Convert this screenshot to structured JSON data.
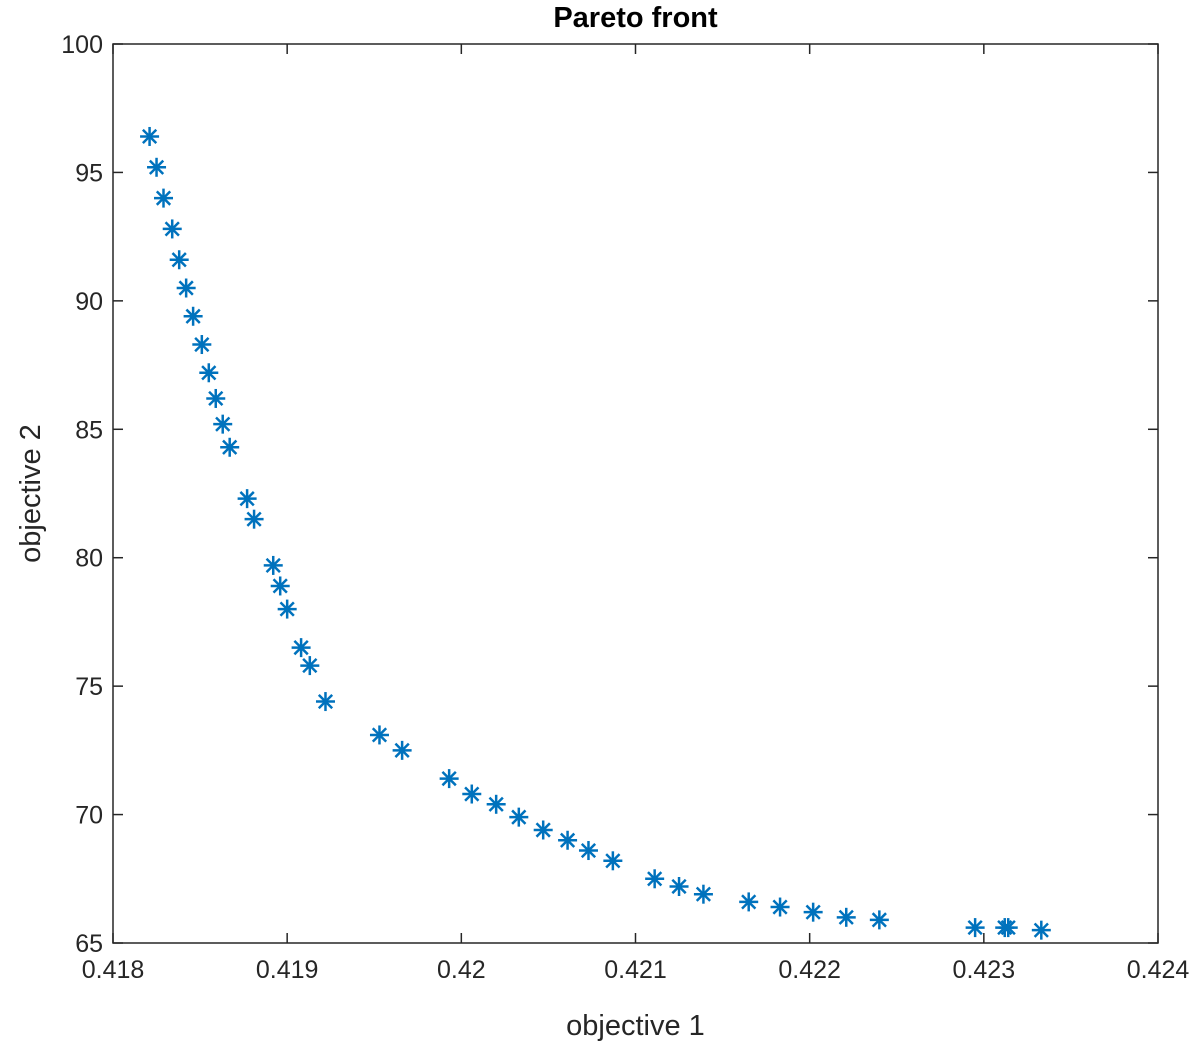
{
  "chart_data": {
    "type": "scatter",
    "title": "Pareto front",
    "xlabel": "objective 1",
    "ylabel": "objective 2",
    "xlim": [
      0.418,
      0.424
    ],
    "ylim": [
      65,
      100
    ],
    "grid": false,
    "legend": "none",
    "marker": "asterisk",
    "color": "#0072BD",
    "xticks": [
      0.418,
      0.419,
      0.42,
      0.421,
      0.422,
      0.423,
      0.424
    ],
    "xtick_labels": [
      "0.418",
      "0.419",
      "0.42",
      "0.421",
      "0.422",
      "0.423",
      "0.424"
    ],
    "yticks": [
      65,
      70,
      75,
      80,
      85,
      90,
      95,
      100
    ],
    "ytick_labels": [
      "65",
      "70",
      "75",
      "80",
      "85",
      "90",
      "95",
      "100"
    ],
    "x": [
      0.41821,
      0.41825,
      0.41829,
      0.41834,
      0.41838,
      0.41842,
      0.41846,
      0.41851,
      0.41855,
      0.41859,
      0.41863,
      0.41867,
      0.41877,
      0.41881,
      0.41892,
      0.41896,
      0.419,
      0.41908,
      0.41913,
      0.41922,
      0.41953,
      0.41966,
      0.41993,
      0.42006,
      0.4202,
      0.42033,
      0.42047,
      0.42061,
      0.42073,
      0.42087,
      0.42111,
      0.42125,
      0.42139,
      0.42165,
      0.42183,
      0.42202,
      0.42221,
      0.4224,
      0.42295,
      0.42312,
      0.42314,
      0.42333
    ],
    "y": [
      96.4,
      95.2,
      94.0,
      92.8,
      91.6,
      90.5,
      89.4,
      88.3,
      87.2,
      86.2,
      85.2,
      84.3,
      82.3,
      81.5,
      79.7,
      78.9,
      78.0,
      76.5,
      75.8,
      74.4,
      73.1,
      72.5,
      71.4,
      70.8,
      70.4,
      69.9,
      69.4,
      69.0,
      68.6,
      68.2,
      67.5,
      67.2,
      66.9,
      66.6,
      66.4,
      66.2,
      66.0,
      65.9,
      65.6,
      65.6,
      65.6,
      65.5
    ]
  }
}
